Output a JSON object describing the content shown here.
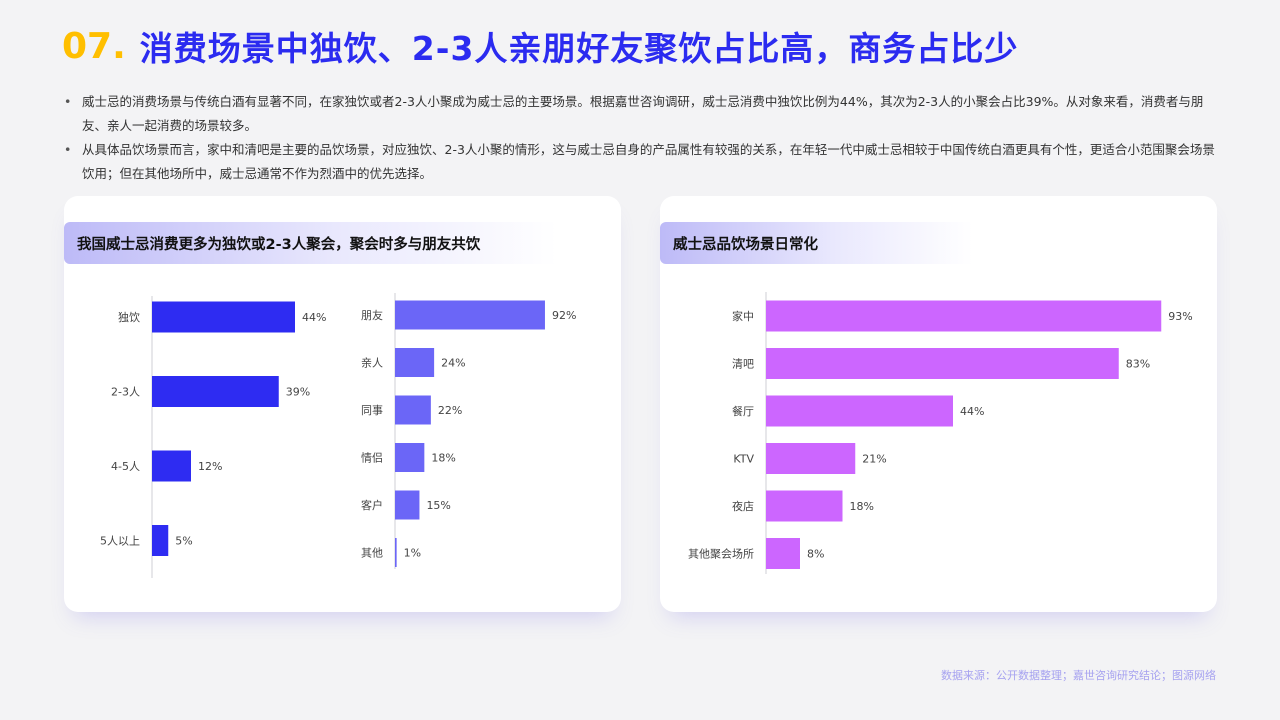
{
  "header": {
    "number": "07.",
    "title": "消费场景中独饮、2-3人亲朋好友聚饮占比高，商务占比少"
  },
  "bullets": [
    "威士忌的消费场景与传统白酒有显著不同，在家独饮或者2-3人小聚成为威士忌的主要场景。根据嘉世咨询调研，威士忌消费中独饮比例为44%，其次为2-3人的小聚会占比39%。从对象来看，消费者与朋友、亲人一起消费的场景较多。",
    "从具体品饮场景而言，家中和清吧是主要的品饮场景，对应独饮、2-3人小聚的情形，这与威士忌自身的产品属性有较强的关系，在年轻一代中威士忌相较于中国传统白酒更具有个性，更适合小范围聚会场景饮用；但在其他场所中，威士忌通常不作为烈酒中的优先选择。"
  ],
  "cards": {
    "left_title": "我国威士忌消费更多为独饮或2-3人聚会，聚会时多与朋友共饮",
    "right_title": "威士忌品饮场景日常化"
  },
  "source": "数据来源：公开数据整理；嘉世咨询研究结论；图源网络",
  "colors": {
    "title_number": "#ffbf00",
    "title_text": "#2b2bf0",
    "bar_group_size": "#2e2cf2",
    "bar_companion": "#6b66f7",
    "bar_venue": "#cc66ff"
  },
  "chart_data": [
    {
      "type": "bar",
      "orientation": "horizontal",
      "categories": [
        "独饮",
        "2-3人",
        "4-5人",
        "5人以上"
      ],
      "values": [
        44,
        39,
        12,
        5
      ],
      "value_labels": [
        "44%",
        "39%",
        "12%",
        "5%"
      ],
      "xlim": [
        0,
        100
      ],
      "color": "#2e2cf2"
    },
    {
      "type": "bar",
      "orientation": "horizontal",
      "categories": [
        "朋友",
        "亲人",
        "同事",
        "情侣",
        "客户",
        "其他"
      ],
      "values": [
        92,
        24,
        22,
        18,
        15,
        1
      ],
      "value_labels": [
        "92%",
        "24%",
        "22%",
        "18%",
        "15%",
        "1%"
      ],
      "xlim": [
        0,
        100
      ],
      "color": "#6b66f7"
    },
    {
      "type": "bar",
      "orientation": "horizontal",
      "categories": [
        "家中",
        "清吧",
        "餐厅",
        "KTV",
        "夜店",
        "其他聚会场所"
      ],
      "values": [
        93,
        83,
        44,
        21,
        18,
        8
      ],
      "value_labels": [
        "93%",
        "83%",
        "44%",
        "21%",
        "18%",
        "8%"
      ],
      "xlim": [
        0,
        100
      ],
      "color": "#cc66ff"
    }
  ]
}
